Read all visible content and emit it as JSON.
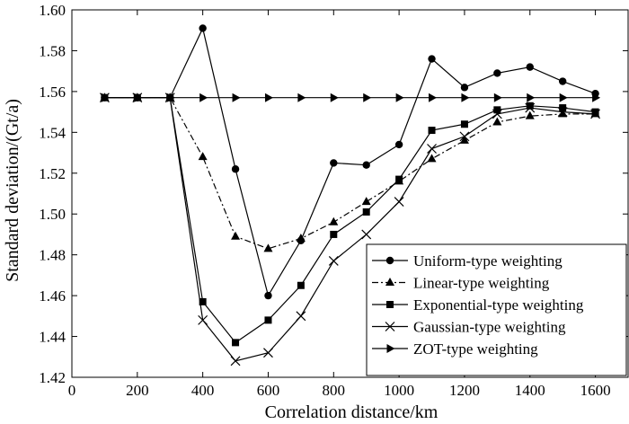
{
  "chart_data": {
    "type": "line",
    "title": "",
    "xlabel": "Correlation distance/km",
    "ylabel": "Standard deviation/(Gt/a)",
    "xlim": [
      0,
      1700
    ],
    "ylim": [
      1.42,
      1.6
    ],
    "xticks": [
      "0",
      "200",
      "400",
      "600",
      "800",
      "1000",
      "1200",
      "1400",
      "1600"
    ],
    "yticks": [
      "1.42",
      "1.44",
      "1.46",
      "1.48",
      "1.50",
      "1.52",
      "1.54",
      "1.56",
      "1.58",
      "1.60"
    ],
    "grid": false,
    "legend_position": "bottom-right",
    "x": [
      100,
      200,
      300,
      400,
      500,
      600,
      700,
      800,
      900,
      1000,
      1100,
      1200,
      1300,
      1400,
      1500,
      1600
    ],
    "series": [
      {
        "name": "Uniform-type weighting",
        "marker": "circle",
        "line": "solid",
        "values": [
          1.557,
          1.557,
          1.557,
          1.591,
          1.522,
          1.46,
          1.487,
          1.525,
          1.524,
          1.534,
          1.576,
          1.562,
          1.569,
          1.572,
          1.565,
          1.559
        ]
      },
      {
        "name": "Linear-type weighting",
        "marker": "triangle-up",
        "line": "dashdot",
        "values": [
          1.557,
          1.557,
          1.557,
          1.528,
          1.489,
          1.483,
          1.488,
          1.496,
          1.506,
          1.516,
          1.527,
          1.536,
          1.545,
          1.548,
          1.549,
          1.549
        ]
      },
      {
        "name": "Exponential-type weighting",
        "marker": "square",
        "line": "solid",
        "values": [
          1.557,
          1.557,
          1.557,
          1.457,
          1.437,
          1.448,
          1.465,
          1.49,
          1.501,
          1.517,
          1.541,
          1.544,
          1.551,
          1.553,
          1.552,
          1.55
        ]
      },
      {
        "name": "Gaussian-type weighting",
        "marker": "x",
        "line": "solid",
        "values": [
          1.557,
          1.557,
          1.557,
          1.448,
          1.428,
          1.432,
          1.45,
          1.477,
          1.49,
          1.506,
          1.532,
          1.538,
          1.549,
          1.552,
          1.55,
          1.549
        ]
      },
      {
        "name": "ZOT-type weighting",
        "marker": "triangle-right",
        "line": "solid",
        "values": [
          1.557,
          1.557,
          1.557,
          1.557,
          1.557,
          1.557,
          1.557,
          1.557,
          1.557,
          1.557,
          1.557,
          1.557,
          1.557,
          1.557,
          1.557,
          1.557
        ]
      }
    ]
  }
}
